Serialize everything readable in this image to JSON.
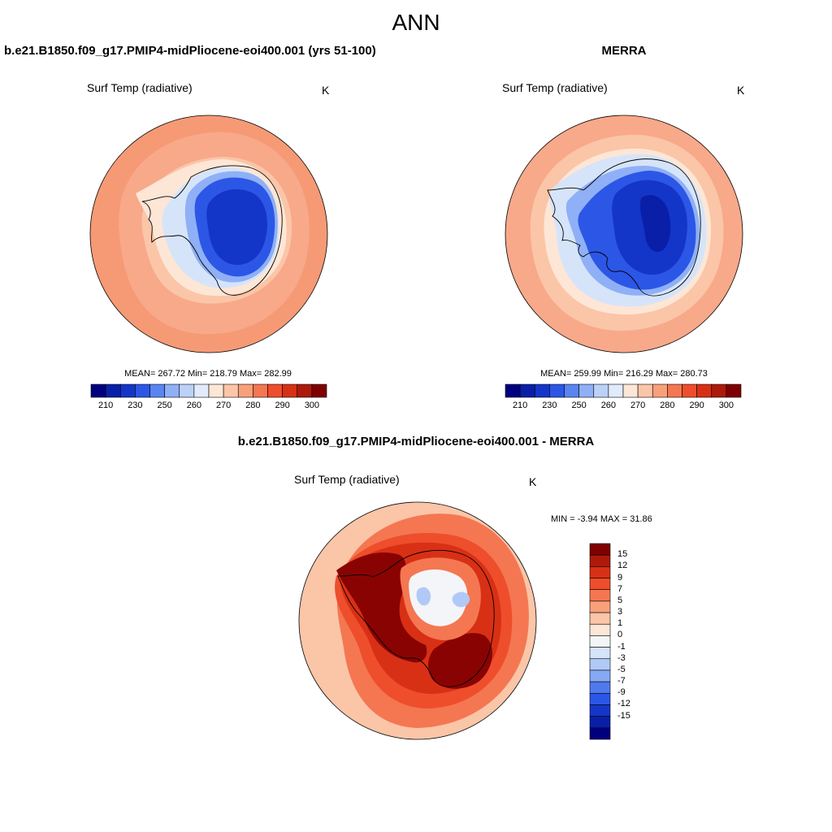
{
  "figure": {
    "title": "ANN"
  },
  "panels": [
    {
      "title": "b.e21.B1850.f09_g17.PMIP4-midPliocene-eoi400.001 (yrs 51-100)",
      "variable": "Surf Temp (radiative)",
      "units": "K",
      "stats": "MEAN= 267.72  Min= 218.79  Max= 282.99"
    },
    {
      "title": "MERRA",
      "variable": "Surf Temp (radiative)",
      "units": "K",
      "stats": "MEAN= 259.99  Min= 216.29  Max= 280.73"
    },
    {
      "title": "b.e21.B1850.f09_g17.PMIP4-midPliocene-eoi400.001 - MERRA",
      "variable": "Surf Temp (radiative)",
      "units": "K",
      "stats": "MIN =  -3.94 MAX =  31.86"
    }
  ],
  "abs_colorbar": {
    "tick_labels": [
      "210",
      "230",
      "250",
      "260",
      "270",
      "280",
      "290",
      "300"
    ],
    "colors": [
      "#00007f",
      "#0a1fa8",
      "#1436c8",
      "#2c56e6",
      "#5a84f2",
      "#8fb0f6",
      "#bcd1f8",
      "#e1ebfb",
      "#fde6d6",
      "#fbc5a8",
      "#f8a07c",
      "#f47751",
      "#ee4e2c",
      "#d83015",
      "#ad1a0a",
      "#7f0000"
    ]
  },
  "diff_colorbar": {
    "tick_labels": [
      "15",
      "12",
      "9",
      "7",
      "5",
      "3",
      "1",
      "0",
      "-1",
      "-3",
      "-5",
      "-7",
      "-9",
      "-12",
      "-15"
    ],
    "colors": [
      "#7f0000",
      "#ad1a0a",
      "#d83015",
      "#ee4e2c",
      "#f47751",
      "#f8a07c",
      "#fbc5a8",
      "#fde6d6",
      "#f4f5f9",
      "#d6e4fa",
      "#b0c9f7",
      "#86a9f4",
      "#4f7aee",
      "#2c56e6",
      "#1436c8",
      "#0a1fa8",
      "#00007f"
    ]
  },
  "map_colors": {
    "ocean_outer": "#f69a76",
    "ocean_mid": "#f8a98a",
    "ocean_cool": "#fbc5a8",
    "ice_edge": "#fde6d6",
    "ice_pale": "#d6e4fa",
    "ice_light": "#8fb0f6",
    "land_mid": "#2c56e6",
    "land_deep": "#1436c8",
    "land_deepest": "#0a1fa8",
    "diff_outer": "#fbc5a8",
    "diff_mid": "#f47751",
    "diff_hot": "#ee4e2c",
    "diff_red": "#d83015",
    "diff_dark": "#8a0303",
    "diff_white": "#f4f5f9",
    "diff_blue": "#b0c9f7"
  }
}
